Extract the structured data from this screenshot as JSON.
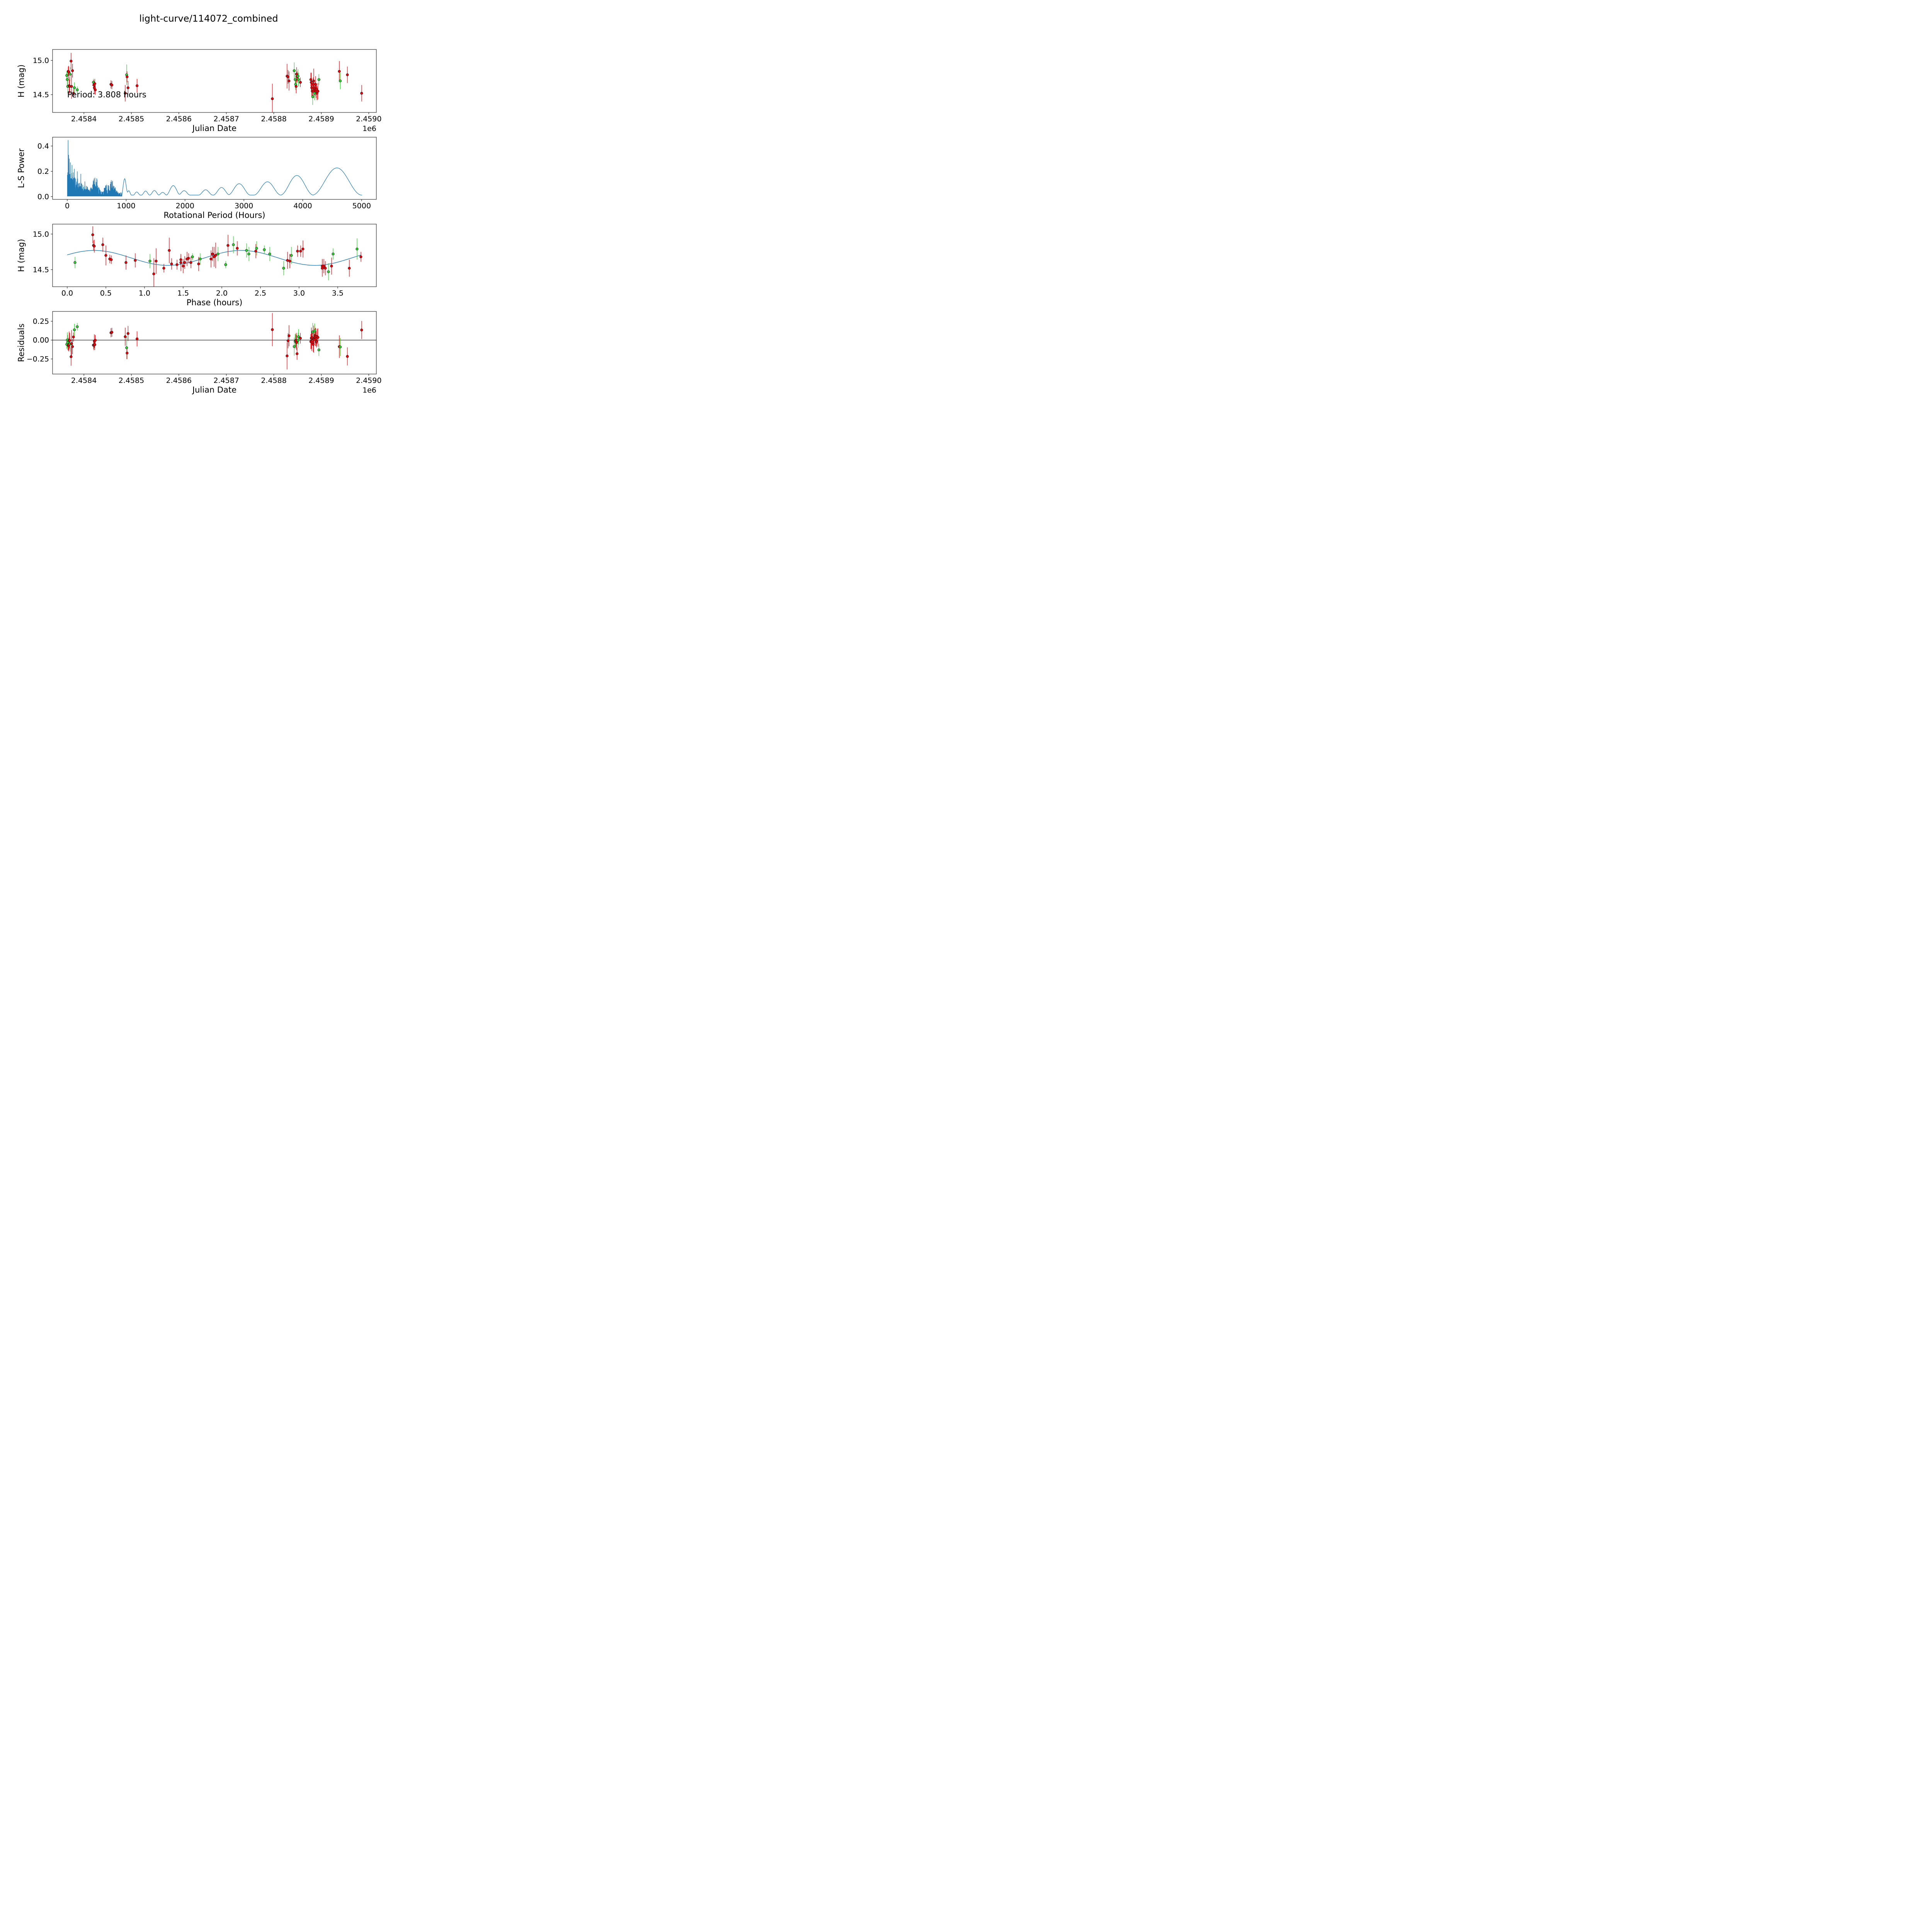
{
  "title": "light-curve/114072_combined",
  "chart_data": {
    "figure_title": "light-curve/114072_combined",
    "colors": {
      "red_series": "#e8000b",
      "green_series": "#2fd32f",
      "fit_line": "#1f77b4",
      "zero_line": "#000000",
      "marker_edge": "#1a1a1a"
    },
    "panels": [
      {
        "id": "jd_mag",
        "type": "scatter",
        "xlabel": "Julian Date",
        "ylabel": "H (mag)",
        "x_offset_text": "1e6",
        "annotation": "Period: 3.808 hours",
        "xlim": [
          2.458334,
          2.459016
        ],
        "ylim": [
          14.24,
          15.16
        ],
        "xticks": {
          "values": [
            2.4584,
            2.4585,
            2.4586,
            2.4587,
            2.4588,
            2.4589,
            2.459
          ],
          "labels": [
            "2.4584",
            "2.4585",
            "2.4586",
            "2.4587",
            "2.4588",
            "2.4589",
            "2.4590"
          ]
        },
        "yticks": {
          "values": [
            15.0,
            14.5
          ],
          "labels": [
            "15.0",
            "14.5"
          ]
        }
      },
      {
        "id": "periodogram",
        "type": "line",
        "xlabel": "Rotational Period (Hours)",
        "ylabel": "L-S Power",
        "xlim": [
          -250,
          5250
        ],
        "ylim": [
          -0.022,
          0.47
        ],
        "xticks": {
          "values": [
            0,
            1000,
            2000,
            3000,
            4000,
            5000
          ],
          "labels": [
            "0",
            "1000",
            "2000",
            "3000",
            "4000",
            "5000"
          ]
        },
        "yticks": {
          "values": [
            0.0,
            0.2,
            0.4
          ],
          "labels": [
            "0.0",
            "0.2",
            "0.4"
          ]
        }
      },
      {
        "id": "phase_mag",
        "type": "scatter+line",
        "xlabel": "Phase (hours)",
        "ylabel": "H (mag)",
        "xlim": [
          -0.19,
          4.0
        ],
        "ylim": [
          14.26,
          15.14
        ],
        "xticks": {
          "values": [
            0.0,
            0.5,
            1.0,
            1.5,
            2.0,
            2.5,
            3.0,
            3.5
          ],
          "labels": [
            "0.0",
            "0.5",
            "1.0",
            "1.5",
            "2.0",
            "2.5",
            "3.0",
            "3.5"
          ]
        },
        "yticks": {
          "values": [
            15.0,
            14.5
          ],
          "labels": [
            "15.0",
            "14.5"
          ]
        }
      },
      {
        "id": "residuals",
        "type": "scatter",
        "xlabel": "Julian Date",
        "ylabel": "Residuals",
        "x_offset_text": "1e6",
        "zero_line": true,
        "xlim": [
          2.458334,
          2.459016
        ],
        "ylim": [
          -0.45,
          0.38
        ],
        "xticks": {
          "values": [
            2.4584,
            2.4585,
            2.4586,
            2.4587,
            2.4588,
            2.4589,
            2.459
          ],
          "labels": [
            "2.4584",
            "2.4585",
            "2.4586",
            "2.4587",
            "2.4588",
            "2.4589",
            "2.4590"
          ]
        },
        "yticks": {
          "values": [
            -0.25,
            0.0,
            0.25
          ],
          "labels": [
            "−0.25",
            "0.00",
            "0.25"
          ]
        }
      }
    ],
    "model_fit": {
      "rotation_period_hours": 3.808,
      "fit_period_hours": 1.904,
      "mean_mag": 14.665,
      "amplitude_mag": 0.105,
      "peak_phase_hours": 0.35,
      "residual_sense": "model_minus_data"
    },
    "observations_format": [
      "jd_1e6",
      "phase_hours",
      "H_mag",
      "err_mag",
      "color"
    ],
    "observations": [
      [
        2.458364,
        2.55,
        14.78,
        0.06,
        "g"
      ],
      [
        2.458365,
        1.95,
        14.72,
        0.1,
        "g"
      ],
      [
        2.458366,
        1.07,
        14.62,
        0.1,
        "g"
      ],
      [
        2.458367,
        0.34,
        14.84,
        0.07,
        "r"
      ],
      [
        2.458368,
        0.35,
        14.83,
        0.09,
        "r"
      ],
      [
        2.458369,
        2.85,
        14.63,
        0.12,
        "r"
      ],
      [
        2.45837,
        2.88,
        14.62,
        0.1,
        "r"
      ],
      [
        2.458371,
        2.45,
        14.8,
        0.1,
        "g"
      ],
      [
        2.458373,
        0.33,
        14.99,
        0.12,
        "r"
      ],
      [
        2.458374,
        1.15,
        14.62,
        0.18,
        "r"
      ],
      [
        2.458376,
        0.46,
        14.85,
        0.1,
        "r"
      ],
      [
        2.458378,
        1.25,
        14.52,
        0.06,
        "r"
      ],
      [
        2.45838,
        0.1,
        14.6,
        0.08,
        "g"
      ],
      [
        2.458386,
        2.05,
        14.57,
        0.05,
        "g"
      ],
      [
        2.45842,
        1.62,
        14.68,
        0.05,
        "g"
      ],
      [
        2.458421,
        1.47,
        14.64,
        0.07,
        "r"
      ],
      [
        2.458422,
        1.52,
        14.6,
        0.09,
        "r"
      ],
      [
        2.458423,
        1.57,
        14.66,
        0.07,
        "r"
      ],
      [
        2.458424,
        1.42,
        14.57,
        0.07,
        "r"
      ],
      [
        2.458457,
        0.55,
        14.65,
        0.06,
        "r"
      ],
      [
        2.458459,
        0.57,
        14.64,
        0.06,
        "r"
      ],
      [
        2.458487,
        3.3,
        14.52,
        0.12,
        "r"
      ],
      [
        2.45849,
        3.75,
        14.79,
        0.15,
        "g"
      ],
      [
        2.458491,
        2.98,
        14.76,
        0.08,
        "r"
      ],
      [
        2.458493,
        0.76,
        14.6,
        0.1,
        "r"
      ],
      [
        2.458512,
        0.88,
        14.63,
        0.1,
        "r"
      ],
      [
        2.458797,
        1.12,
        14.44,
        0.22,
        "r"
      ],
      [
        2.458828,
        1.32,
        14.77,
        0.18,
        "r"
      ],
      [
        2.45883,
        2.44,
        14.76,
        0.1,
        "r"
      ],
      [
        2.458832,
        0.5,
        14.7,
        0.14,
        "r"
      ],
      [
        2.458843,
        2.15,
        14.85,
        0.12,
        "g"
      ],
      [
        2.458845,
        2.62,
        14.72,
        0.1,
        "g"
      ],
      [
        2.458846,
        1.72,
        14.65,
        0.08,
        "g"
      ],
      [
        2.458847,
        2.88,
        14.62,
        0.1,
        "r"
      ],
      [
        2.458848,
        2.2,
        14.8,
        0.1,
        "r"
      ],
      [
        2.458849,
        3.02,
        14.76,
        0.08,
        "r"
      ],
      [
        2.458851,
        2.32,
        14.77,
        0.1,
        "g"
      ],
      [
        2.458852,
        2.35,
        14.72,
        0.1,
        "g"
      ],
      [
        2.458856,
        3.8,
        14.68,
        0.07,
        "r"
      ],
      [
        2.458878,
        1.88,
        14.72,
        0.1,
        "r"
      ],
      [
        2.458879,
        1.9,
        14.68,
        0.14,
        "r"
      ],
      [
        2.45888,
        1.47,
        14.6,
        0.12,
        "r"
      ],
      [
        2.458881,
        1.5,
        14.55,
        0.1,
        "r"
      ],
      [
        2.458882,
        3.38,
        14.47,
        0.12,
        "g"
      ],
      [
        2.458883,
        1.55,
        14.65,
        0.1,
        "r"
      ],
      [
        2.458884,
        1.92,
        14.7,
        0.18,
        "r"
      ],
      [
        2.458884,
        3.3,
        14.55,
        0.1,
        "r"
      ],
      [
        2.458885,
        1.6,
        14.6,
        0.08,
        "r"
      ],
      [
        2.458886,
        2.8,
        14.52,
        0.1,
        "g"
      ],
      [
        2.458887,
        1.7,
        14.58,
        0.1,
        "r"
      ],
      [
        2.458888,
        1.86,
        14.65,
        0.12,
        "r"
      ],
      [
        2.458889,
        3.32,
        14.55,
        0.1,
        "r"
      ],
      [
        2.45889,
        1.35,
        14.58,
        0.08,
        "r"
      ],
      [
        2.458891,
        3.34,
        14.52,
        0.1,
        "r"
      ],
      [
        2.458893,
        3.42,
        14.55,
        0.12,
        "r"
      ],
      [
        2.458895,
        3.44,
        14.72,
        0.08,
        "g"
      ],
      [
        2.458938,
        2.08,
        14.84,
        0.15,
        "r"
      ],
      [
        2.45894,
        2.9,
        14.7,
        0.12,
        "g"
      ],
      [
        2.458955,
        3.05,
        14.79,
        0.12,
        "r"
      ],
      [
        2.458985,
        3.65,
        14.52,
        0.12,
        "r"
      ]
    ],
    "periodogram": {
      "noise": {
        "pmin": 2,
        "pmax": 930,
        "step": 3,
        "base": 0.032,
        "scale": 0.27,
        "decay": 200,
        "seed": 11,
        "noise_bumps": [
          [
            480,
            0.1,
            100
          ],
          [
            660,
            0.05,
            70
          ],
          [
            760,
            0.085,
            110
          ]
        ],
        "spikes": [
          [
            14,
            0.447
          ],
          [
            22,
            0.33
          ],
          [
            34,
            0.3
          ],
          [
            52,
            0.27
          ],
          [
            80,
            0.25
          ],
          [
            120,
            0.22
          ],
          [
            170,
            0.2
          ],
          [
            230,
            0.18
          ],
          [
            300,
            0.12
          ],
          [
            470,
            0.15
          ],
          [
            500,
            0.145
          ],
          [
            745,
            0.13
          ],
          [
            770,
            0.125
          ]
        ]
      },
      "smooth_base": 0.012,
      "smooth_bumps": [
        [
          975,
          0.13,
          55
        ],
        [
          1045,
          0.035,
          45
        ],
        [
          1180,
          0.025,
          60
        ],
        [
          1330,
          0.032,
          70
        ],
        [
          1480,
          0.036,
          80
        ],
        [
          1620,
          0.022,
          70
        ],
        [
          1800,
          0.075,
          120
        ],
        [
          1985,
          0.035,
          100
        ],
        [
          2350,
          0.042,
          120
        ],
        [
          2620,
          0.06,
          140
        ],
        [
          2920,
          0.09,
          190
        ],
        [
          3400,
          0.105,
          230
        ],
        [
          3900,
          0.155,
          280
        ],
        [
          4580,
          0.215,
          420
        ]
      ],
      "main_peak_power": 0.447
    }
  }
}
